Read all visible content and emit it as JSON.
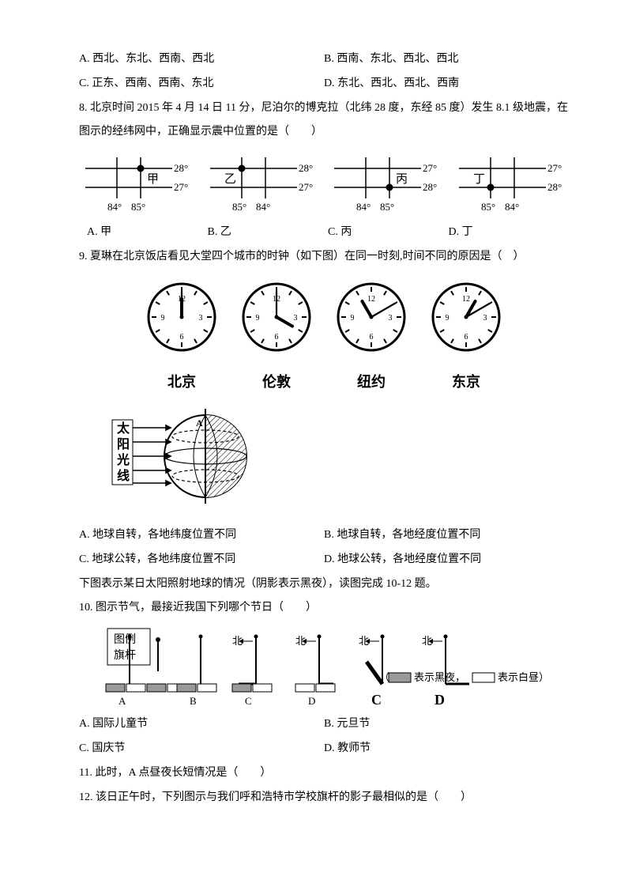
{
  "q_prefix_opts": {
    "A": "A. 西北、东北、西南、西北",
    "B": "B. 西南、东北、西北、西北",
    "C": "C. 正东、西南、西南、东北",
    "D": "D. 东北、西北、西北、西南"
  },
  "q8": {
    "text": "8. 北京时间 2015 年 4 月 14 日 11 分，尼泊尔的博克拉（北纬 28 度，东经 85 度）发生 8.1 级地震，在图示的经纬网中，正确显示震中位置的是（　　）",
    "grids": [
      {
        "name": "甲",
        "topRow": "28°",
        "botRow": "27°",
        "cols": [
          "84°",
          "85°"
        ],
        "dotCol": 1,
        "dotRow": 0
      },
      {
        "name": "乙",
        "topRow": "28°",
        "botRow": "27°",
        "cols": [
          "85°",
          "84°"
        ],
        "dotCol": 0,
        "dotRow": 0
      },
      {
        "name": "丙",
        "topRow": "27°",
        "botRow": "28°",
        "cols": [
          "84°",
          "85°"
        ],
        "dotCol": 1,
        "dotRow": 1
      },
      {
        "name": "丁",
        "topRow": "27°",
        "botRow": "28°",
        "cols": [
          "85°",
          "84°"
        ],
        "dotCol": 0,
        "dotRow": 1
      }
    ],
    "answers": {
      "A": "A. 甲",
      "B": "B. 乙",
      "C": "C. 丙",
      "D": "D. 丁"
    }
  },
  "q9": {
    "text": "9. 夏琳在北京饭店看见大堂四个城市的时钟（如下图）在同一时刻,时间不同的原因是（　）",
    "clocks": [
      {
        "city": "北京",
        "hourAngle": 0,
        "minAngle": 0
      },
      {
        "city": "伦敦",
        "hourAngle": 120,
        "minAngle": 0
      },
      {
        "city": "纽约",
        "hourAngle": 330,
        "minAngle": 60
      },
      {
        "city": "东京",
        "hourAngle": 30,
        "minAngle": 60
      }
    ],
    "globe_labels": [
      "太",
      "阳",
      "光",
      "线"
    ],
    "options": {
      "A": "A. 地球自转，各地纬度位置不同",
      "B": "B. 地球自转，各地经度位置不同",
      "C": "C. 地球公转，各地纬度位置不同",
      "D": "D. 地球公转，各地经度位置不同"
    }
  },
  "intro_10_12": "下图表示某日太阳照射地球的情况（阴影表示黑夜），读图完成 10-12 题。",
  "q10": {
    "text": "10. 图示节气，最接近我国下列哪个节日（　　）",
    "legend_items": [
      "图例",
      "旗杆"
    ],
    "legend_note_shadow": "表示黑夜，",
    "legend_note_day": "表示白昼）",
    "north": "北",
    "row_labels": [
      "A",
      "B",
      "C",
      "D",
      "C",
      "D"
    ],
    "options": {
      "A": "A. 国际儿童节",
      "B": "B. 元旦节",
      "C": "C. 国庆节",
      "D": "D. 教师节"
    }
  },
  "q11": {
    "text": "11. 此时，A 点昼夜长短情况是（　　）"
  },
  "q12": {
    "text": "12. 该日正午时，下列图示与我们呼和浩特市学校旗杆的影子最相似的是（　　）"
  },
  "colors": {
    "text": "#000000",
    "line": "#000000",
    "bg": "#ffffff",
    "shade": "#9a9a9a",
    "shade_light": "#c8c8c8"
  }
}
